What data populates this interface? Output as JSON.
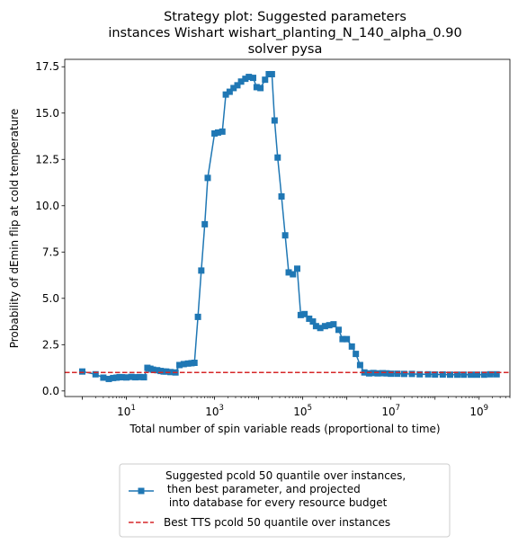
{
  "chart_data": {
    "type": "line",
    "title": [
      "Strategy plot: Suggested parameters",
      "instances Wishart wishart_planting_N_140_alpha_0.90",
      "solver pysa"
    ],
    "xlabel": "Total number of spin variable reads (proportional to time)",
    "ylabel": "Probability of dEmin flip at cold temperature",
    "xscale": "log",
    "xlim": [
      0.4,
      5000000000.0
    ],
    "ylim": [
      -0.3,
      17.9
    ],
    "xticks": [
      {
        "base": "10",
        "exp": "1",
        "value": 10
      },
      {
        "base": "10",
        "exp": "3",
        "value": 1000
      },
      {
        "base": "10",
        "exp": "5",
        "value": 100000
      },
      {
        "base": "10",
        "exp": "7",
        "value": 10000000
      },
      {
        "base": "10",
        "exp": "9",
        "value": 1000000000
      }
    ],
    "yticks": [
      "0.0",
      "2.5",
      "5.0",
      "7.5",
      "10.0",
      "12.5",
      "15.0",
      "17.5"
    ],
    "grid": false,
    "legend_position": "below",
    "series": [
      {
        "name": "Suggested pcold 50 quantile over instances,\n  then best parameter, and projected\n into database for every resource budget",
        "color": "#1f77b4",
        "marker": "square",
        "linestyle": "solid",
        "x": [
          1,
          2,
          3,
          4,
          5,
          6,
          7,
          8,
          10,
          13,
          16,
          20,
          25,
          30,
          35,
          40,
          50,
          60,
          70,
          80,
          100,
          130,
          160,
          200,
          250,
          300,
          350,
          420,
          500,
          600,
          700,
          1000,
          1200,
          1500,
          1800,
          2200,
          2700,
          3300,
          4000,
          5000,
          6000,
          7500,
          9000,
          11000,
          14000,
          17000,
          20000,
          23000,
          27000,
          33000,
          40000,
          48000,
          60000,
          75000,
          90000,
          110000,
          140000,
          170000,
          200000,
          250000,
          320000,
          400000,
          500000,
          650000,
          800000,
          1000000,
          1300000,
          1600000,
          2000000,
          2500000,
          3200000,
          4000000,
          5000000,
          6500000,
          8000000,
          10000000,
          14000000,
          20000000,
          30000000,
          45000000,
          70000000,
          100000000,
          150000000,
          220000000,
          320000000,
          450000000,
          650000000,
          900000000,
          1300000000,
          1800000000,
          2500000000
        ],
        "y": [
          1.05,
          0.9,
          0.72,
          0.65,
          0.7,
          0.72,
          0.75,
          0.74,
          0.73,
          0.76,
          0.74,
          0.75,
          0.74,
          1.25,
          1.2,
          1.15,
          1.12,
          1.08,
          1.05,
          1.05,
          1.02,
          1.0,
          1.4,
          1.45,
          1.48,
          1.5,
          1.52,
          4.0,
          6.5,
          9.0,
          11.5,
          13.9,
          13.95,
          14.0,
          16.0,
          16.15,
          16.35,
          16.5,
          16.7,
          16.85,
          16.95,
          16.9,
          16.4,
          16.35,
          16.8,
          17.1,
          17.1,
          14.6,
          12.6,
          10.5,
          8.4,
          6.4,
          6.3,
          6.6,
          4.1,
          4.15,
          3.9,
          3.75,
          3.5,
          3.4,
          3.5,
          3.55,
          3.6,
          3.3,
          2.8,
          2.8,
          2.4,
          2.0,
          1.4,
          1.0,
          0.95,
          0.97,
          0.95,
          0.96,
          0.95,
          0.93,
          0.93,
          0.92,
          0.92,
          0.9,
          0.9,
          0.89,
          0.89,
          0.88,
          0.88,
          0.88,
          0.88,
          0.88,
          0.88,
          0.9,
          0.9
        ]
      },
      {
        "name": "Best TTS pcold 50 quantile over instances",
        "color": "#d62728",
        "linestyle": "dashed",
        "y_constant": 1.0
      }
    ]
  }
}
